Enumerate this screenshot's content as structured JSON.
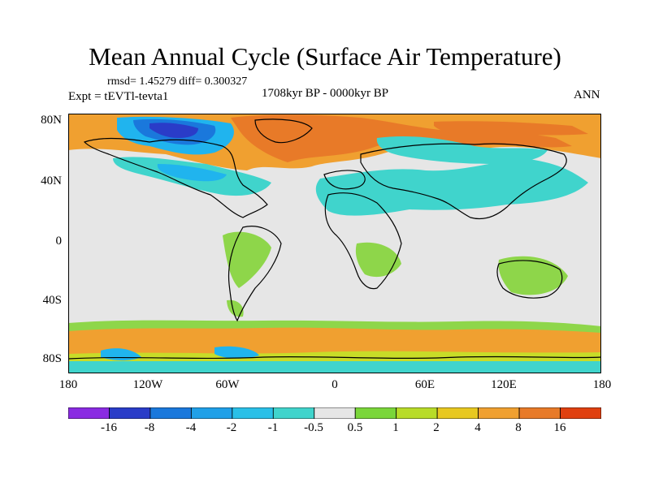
{
  "title": "Mean Annual Cycle (Surface Air Temperature)",
  "stats_text": "rmsd= 1.45279 diff= 0.300327",
  "period": "1708kyr BP - 0000kyr BP",
  "experiment": "Expt = tEVTl-tevta1",
  "season": "ANN",
  "map": {
    "lat_labels": [
      "80N",
      "40N",
      "0",
      "40S",
      "80S"
    ],
    "lon_labels": [
      "180",
      "120W",
      "60W",
      "0",
      "60E",
      "120E",
      "180"
    ],
    "colors": {
      "neutral": "#e6e6e6",
      "ocean_warm_orange": "#f0a030",
      "arctic_orange": "#e87a28",
      "light_green": "#8ed64a",
      "yellow_green": "#c8dc28",
      "cyan": "#40d4cc",
      "light_blue": "#20b4ee",
      "mid_blue": "#1a78dc",
      "dark_blue": "#2a3cc8"
    }
  },
  "colorbar": {
    "labels": [
      "-16",
      "-8",
      "-4",
      "-2",
      "-1",
      "-0.5",
      "0.5",
      "1",
      "2",
      "4",
      "8",
      "16"
    ],
    "colors": [
      "#8a2be2",
      "#2a3cc8",
      "#1a78dc",
      "#20a0e8",
      "#2ac0e8",
      "#40d4cc",
      "#e6e6e6",
      "#7ad63a",
      "#b8dc28",
      "#e8c820",
      "#f0a030",
      "#e87a28",
      "#e04010"
    ]
  }
}
